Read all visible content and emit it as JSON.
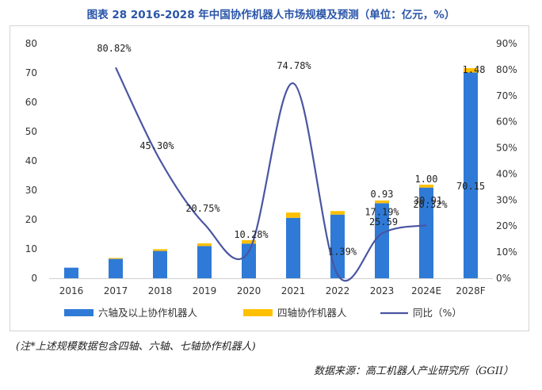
{
  "title": "图表 28   2016-2028 年中国协作机器人市场规模及预测（单位：亿元，%）",
  "note": "(注*上述规模数据包含四轴、六轴、七轴协作机器人)",
  "source": "数据来源：高工机器人产业研究所（GGII）",
  "colors": {
    "six_axis": "#2f7ad6",
    "four_axis": "#ffc000",
    "yoy": "#4a55a2",
    "text": "#333333"
  },
  "chart_data": {
    "type": "bar",
    "categories": [
      "2016",
      "2017",
      "2018",
      "2019",
      "2020",
      "2021",
      "2022",
      "2023",
      "2024E",
      "2028F"
    ],
    "series": [
      {
        "name": "六轴及以上协作机器人",
        "kind": "bar",
        "axis": "left",
        "values": [
          3.6,
          6.6,
          9.3,
          11.0,
          11.8,
          20.6,
          21.7,
          25.59,
          30.91,
          70.15
        ],
        "labels": [
          "",
          "",
          "",
          "",
          "",
          "",
          "",
          "25.59",
          "30.91",
          "70.15"
        ]
      },
      {
        "name": "四轴协作机器人",
        "kind": "bar",
        "axis": "left",
        "stacked": true,
        "values": [
          0.0,
          0.3,
          0.6,
          0.9,
          1.2,
          1.8,
          1.2,
          0.93,
          1.0,
          1.48
        ],
        "labels": [
          "",
          "",
          "",
          "",
          "",
          "",
          "",
          "0.93",
          "1.00",
          "1.48"
        ]
      },
      {
        "name": "同比（%）",
        "kind": "line",
        "axis": "right",
        "smooth": true,
        "values": [
          null,
          80.82,
          45.3,
          20.75,
          10.28,
          74.78,
          1.39,
          17.19,
          20.32,
          null
        ],
        "labels": [
          "",
          "80.82%",
          "45.30%",
          "20.75%",
          "10.28%",
          "74.78%",
          "1.39%",
          "17.19%",
          "20.32%",
          ""
        ]
      }
    ],
    "ylim": [
      0,
      80
    ],
    "yticks": [
      "0",
      "10",
      "20",
      "30",
      "40",
      "50",
      "60",
      "70",
      "80"
    ],
    "y2lim": [
      0,
      90
    ],
    "y2ticks": [
      "0%",
      "10%",
      "20%",
      "30%",
      "40%",
      "50%",
      "60%",
      "70%",
      "80%",
      "90%"
    ],
    "legend": [
      "六轴及以上协作机器人",
      "四轴协作机器人",
      "同比（%）"
    ],
    "legend_position": "bottom",
    "grid": false
  }
}
